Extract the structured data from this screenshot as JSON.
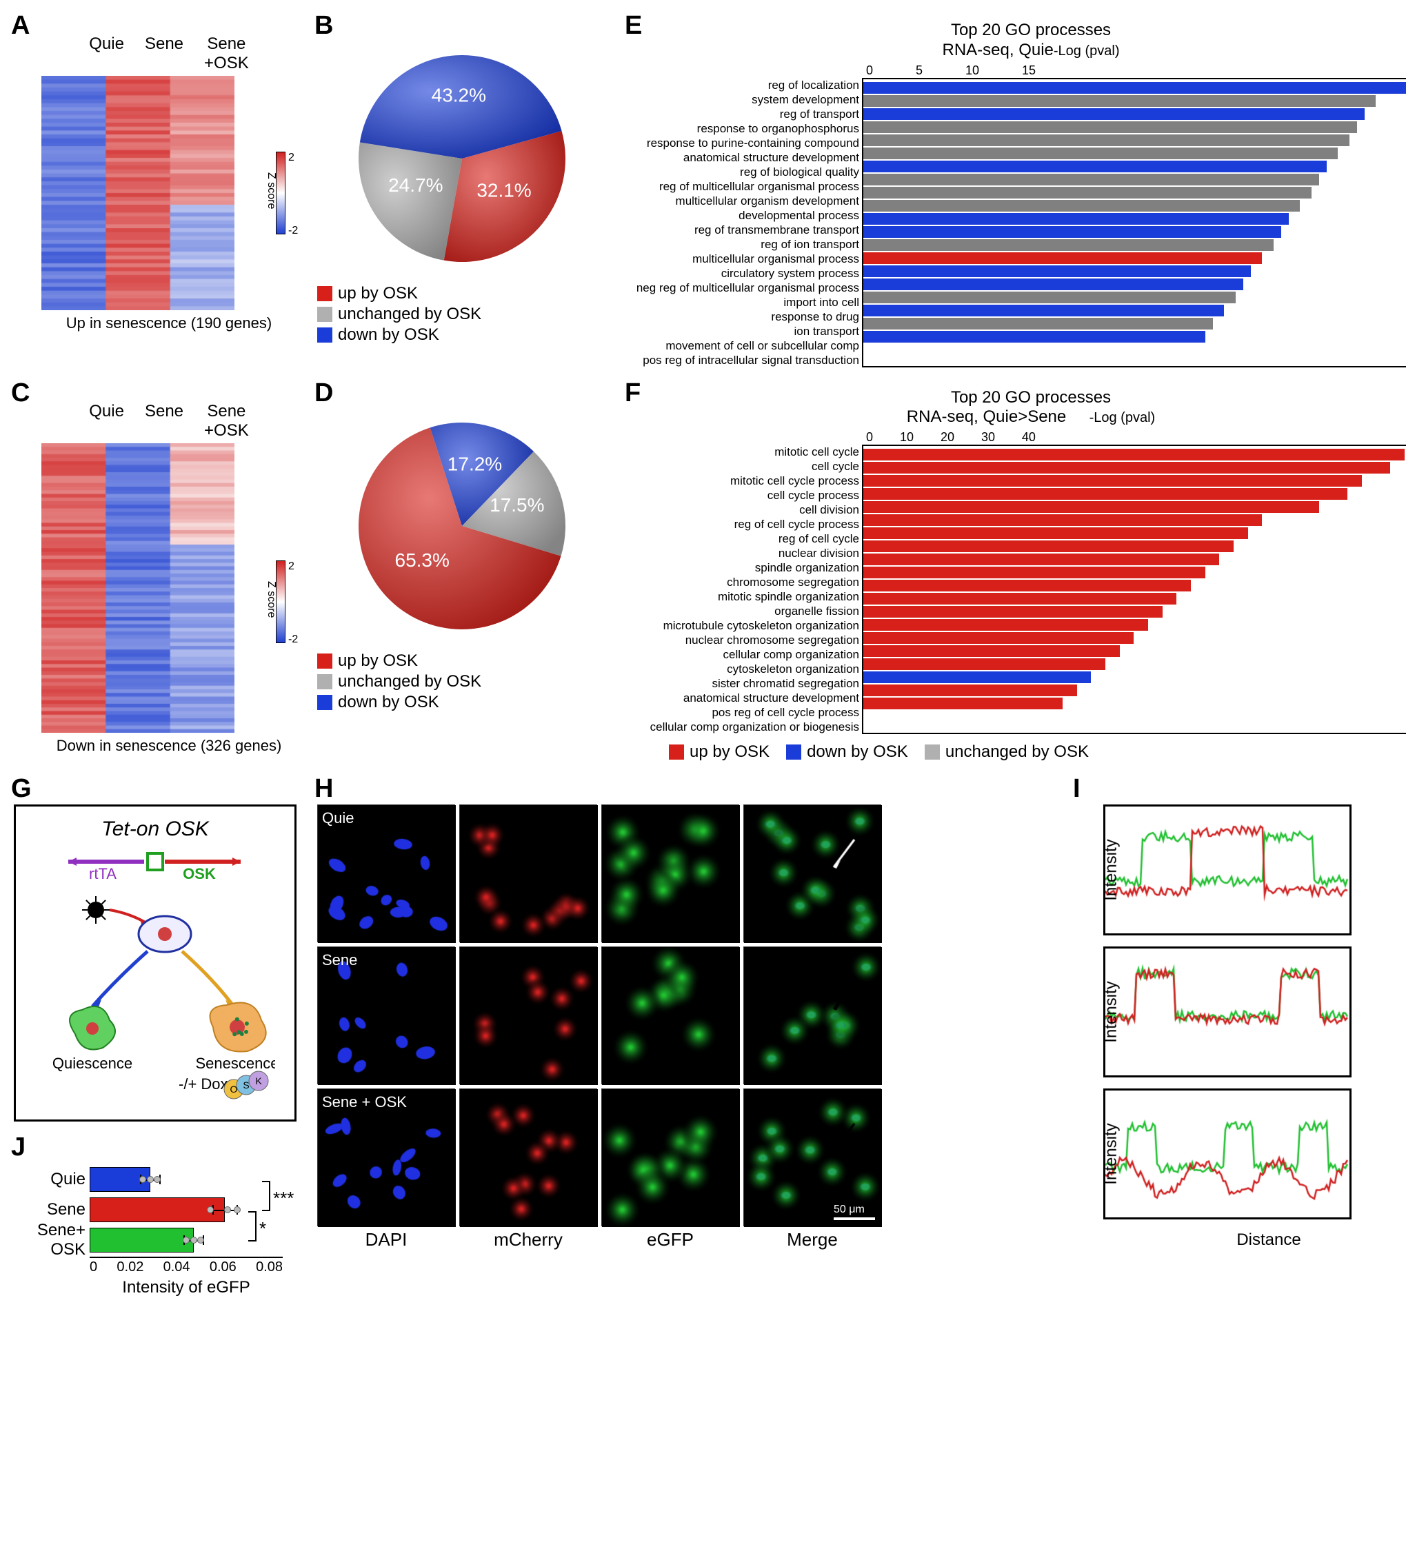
{
  "panels": {
    "A": {
      "label": "A",
      "columns": [
        "Quie",
        "Sene",
        "Sene\n+OSK"
      ],
      "caption": "Up in senescence (190 genes)",
      "rows": 60,
      "colorbar": {
        "min": -2,
        "max": 2,
        "label": "Z score",
        "low_color": "#2040d0",
        "mid_color": "#ffffff",
        "high_color": "#d02020"
      }
    },
    "B": {
      "label": "B",
      "type": "pie",
      "slices": [
        {
          "label": "up by OSK",
          "value": 32.1,
          "color": "#d8201a",
          "text_color": "#ffffff"
        },
        {
          "label": "unchanged by OSK",
          "value": 24.7,
          "color": "#b0b0b0",
          "text_color": "#ffffff"
        },
        {
          "label": "down by OSK",
          "value": 43.2,
          "color": "#1a3cd8",
          "text_color": "#ffffff"
        }
      ]
    },
    "C": {
      "label": "C",
      "columns": [
        "Quie",
        "Sene",
        "Sene\n+OSK"
      ],
      "caption": "Down in senescence (326 genes)",
      "rows": 80,
      "colorbar": {
        "min": -2,
        "max": 2,
        "label": "Z score",
        "low_color": "#2040d0",
        "mid_color": "#ffffff",
        "high_color": "#d02020"
      }
    },
    "D": {
      "label": "D",
      "type": "pie",
      "slices": [
        {
          "label": "up by OSK",
          "value": 65.3,
          "color": "#d8201a",
          "text_color": "#ffffff"
        },
        {
          "label": "unchanged by OSK",
          "value": 17.5,
          "color": "#b0b0b0",
          "text_color": "#ffffff"
        },
        {
          "label": "down by OSK",
          "value": 17.2,
          "color": "#1a3cd8",
          "text_color": "#ffffff"
        }
      ]
    },
    "E": {
      "label": "E",
      "title1": "Top 20 GO processes",
      "title2": "RNA-seq, Quie<Sene",
      "axis_label": "-Log (pval)",
      "axis_max": 15,
      "ticks": [
        0,
        5,
        10,
        15
      ],
      "bars": [
        {
          "label": "reg of localization",
          "value": 14.5,
          "color": "#1a3cd8"
        },
        {
          "label": "system development",
          "value": 13.5,
          "color": "#808080"
        },
        {
          "label": "reg of transport",
          "value": 13.2,
          "color": "#1a3cd8"
        },
        {
          "label": "response to organophosphorus",
          "value": 13.0,
          "color": "#808080"
        },
        {
          "label": "response to purine-containing compound",
          "value": 12.8,
          "color": "#808080"
        },
        {
          "label": "anatomical structure development",
          "value": 12.5,
          "color": "#808080"
        },
        {
          "label": "reg of biological quality",
          "value": 12.2,
          "color": "#1a3cd8"
        },
        {
          "label": "reg of multicellular organismal process",
          "value": 12.0,
          "color": "#808080"
        },
        {
          "label": "multicellular organism development",
          "value": 11.8,
          "color": "#808080"
        },
        {
          "label": "developmental process",
          "value": 11.5,
          "color": "#808080"
        },
        {
          "label": "reg of transmembrane transport",
          "value": 11.2,
          "color": "#1a3cd8"
        },
        {
          "label": "reg of ion transport",
          "value": 11.0,
          "color": "#1a3cd8"
        },
        {
          "label": "multicellular organismal process",
          "value": 10.8,
          "color": "#808080"
        },
        {
          "label": "circulatory system process",
          "value": 10.5,
          "color": "#d8201a"
        },
        {
          "label": "neg reg of multicellular organismal process",
          "value": 10.2,
          "color": "#1a3cd8"
        },
        {
          "label": "import into cell",
          "value": 10.0,
          "color": "#1a3cd8"
        },
        {
          "label": "response to drug",
          "value": 9.8,
          "color": "#808080"
        },
        {
          "label": "ion transport",
          "value": 9.5,
          "color": "#1a3cd8"
        },
        {
          "label": "movement of cell or subcellular comp",
          "value": 9.2,
          "color": "#808080"
        },
        {
          "label": "pos reg of intracellular signal transduction",
          "value": 9.0,
          "color": "#1a3cd8"
        }
      ]
    },
    "F": {
      "label": "F",
      "title1": "Top 20 GO processes",
      "title2": "RNA-seq, Quie>Sene",
      "axis_label": "-Log (pval)",
      "axis_max": 40,
      "ticks": [
        0,
        10,
        20,
        30,
        40
      ],
      "bars": [
        {
          "label": "mitotic cell cycle",
          "value": 38,
          "color": "#d8201a"
        },
        {
          "label": "cell cycle",
          "value": 37,
          "color": "#d8201a"
        },
        {
          "label": "mitotic cell cycle process",
          "value": 35,
          "color": "#d8201a"
        },
        {
          "label": "cell cycle process",
          "value": 34,
          "color": "#d8201a"
        },
        {
          "label": "cell division",
          "value": 32,
          "color": "#d8201a"
        },
        {
          "label": "reg of cell cycle process",
          "value": 28,
          "color": "#d8201a"
        },
        {
          "label": "reg of cell cycle",
          "value": 27,
          "color": "#d8201a"
        },
        {
          "label": "nuclear division",
          "value": 26,
          "color": "#d8201a"
        },
        {
          "label": "spindle organization",
          "value": 25,
          "color": "#d8201a"
        },
        {
          "label": "chromosome segregation",
          "value": 24,
          "color": "#d8201a"
        },
        {
          "label": "mitotic spindle organization",
          "value": 23,
          "color": "#d8201a"
        },
        {
          "label": "organelle fission",
          "value": 22,
          "color": "#d8201a"
        },
        {
          "label": "microtubule cytoskeleton organization",
          "value": 21,
          "color": "#d8201a"
        },
        {
          "label": "nuclear chromosome segregation",
          "value": 20,
          "color": "#d8201a"
        },
        {
          "label": "cellular comp organization",
          "value": 19,
          "color": "#d8201a"
        },
        {
          "label": "cytoskeleton organization",
          "value": 18,
          "color": "#d8201a"
        },
        {
          "label": "sister chromatid segregation",
          "value": 17,
          "color": "#d8201a"
        },
        {
          "label": "anatomical structure development",
          "value": 16,
          "color": "#1a3cd8"
        },
        {
          "label": "pos reg of cell cycle process",
          "value": 15,
          "color": "#d8201a"
        },
        {
          "label": "cellular comp organization or biogenesis",
          "value": 14,
          "color": "#d8201a"
        }
      ],
      "legend": [
        {
          "label": "up by OSK",
          "color": "#d8201a"
        },
        {
          "label": "down by OSK",
          "color": "#1a3cd8"
        },
        {
          "label": "unchanged by OSK",
          "color": "#b0b0b0"
        }
      ]
    },
    "G": {
      "label": "G",
      "title": "Tet-on OSK",
      "elements": {
        "rtTA": "rtTA",
        "OSK": "OSK",
        "quiescence": "Quiescence",
        "senescence": "Senescence",
        "dox": "-/+ Dox",
        "circles": [
          "O",
          "S",
          "K"
        ]
      },
      "colors": {
        "rtTA": "#9030c0",
        "osk_box": "#20a020",
        "osk_arrow": "#d02020",
        "quie_cell": "#60d060",
        "sene_cell": "#f0b060"
      }
    },
    "H": {
      "label": "H",
      "rows": [
        "Quie",
        "Sene",
        "Sene + OSK"
      ],
      "cols": [
        "DAPI",
        "mCherry",
        "eGFP",
        "Merge"
      ],
      "channel_colors": {
        "DAPI": "#2030e0",
        "mCherry": "#d02020",
        "eGFP": "#20c030",
        "Merge": "#000000"
      },
      "scalebar": "50 μm"
    },
    "I": {
      "label": "I",
      "ylabel": "Intensity",
      "xlabel": "Distance",
      "traces": {
        "green": "#20c030",
        "red": "#d02020"
      },
      "plot_count": 3
    },
    "J": {
      "label": "J",
      "xlabel": "Intensity of eGFP",
      "xmax": 0.08,
      "ticks": [
        0,
        0.02,
        0.04,
        0.06,
        0.08
      ],
      "bars": [
        {
          "label": "Quie",
          "value": 0.025,
          "err": 0.004,
          "color": "#1a3cd8",
          "points": [
            0.022,
            0.025,
            0.028
          ]
        },
        {
          "label": "Sene",
          "value": 0.056,
          "err": 0.005,
          "color": "#d8201a",
          "points": [
            0.05,
            0.057,
            0.061
          ]
        },
        {
          "label": "Sene+\nOSK",
          "value": 0.043,
          "err": 0.004,
          "color": "#20c030",
          "points": [
            0.04,
            0.043,
            0.046
          ]
        }
      ],
      "significance": [
        {
          "from": 0,
          "to": 1,
          "stars": "***"
        },
        {
          "from": 1,
          "to": 2,
          "stars": "*"
        }
      ]
    }
  }
}
